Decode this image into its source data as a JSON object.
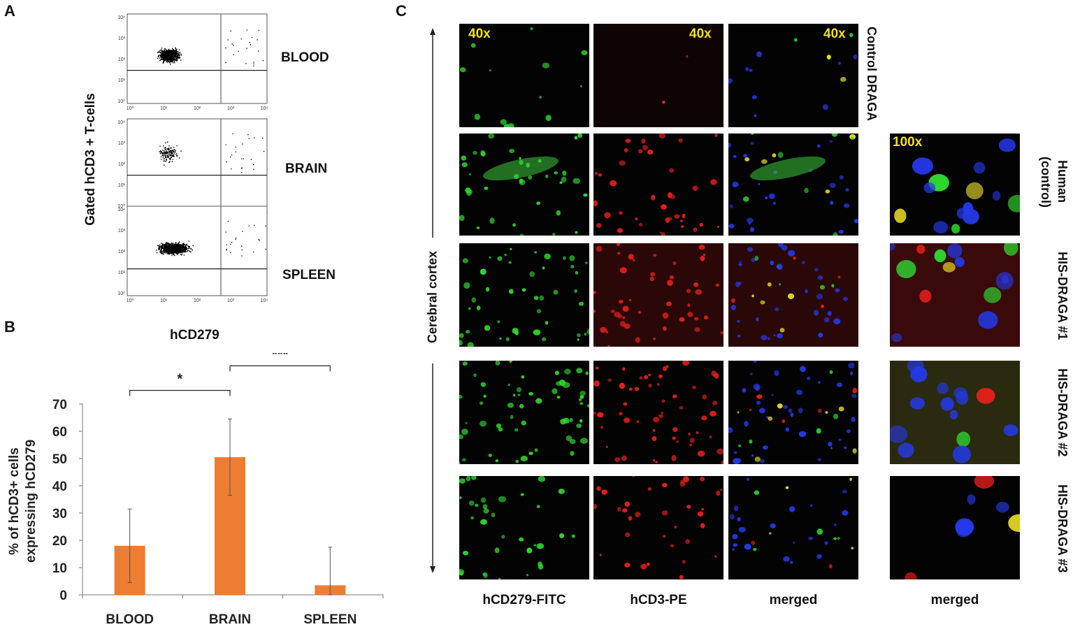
{
  "panels": {
    "a": "A",
    "b": "B",
    "c": "C"
  },
  "panel_a": {
    "ylabel": "Gated hCD3 + T-cells",
    "xlabel": "hCD279",
    "plots": [
      {
        "label": "BLOOD"
      },
      {
        "label": "BRAIN"
      },
      {
        "label": "SPLEEN"
      }
    ],
    "y_ticks": [
      "10⁴",
      "10³",
      "10²",
      "10¹",
      "10⁰"
    ],
    "x_ticks": [
      "10⁰",
      "10¹",
      "10²",
      "10³",
      "10⁴"
    ]
  },
  "chart_data": {
    "type": "bar",
    "categories": [
      "BLOOD",
      "BRAIN",
      "SPLEEN"
    ],
    "values": [
      18,
      50.5,
      3.5
    ],
    "error": [
      13.5,
      14,
      14
    ],
    "ylabel": "% of hCD3+ cells expressing hCD279",
    "ylabel_lines": [
      "% of hCD3+ cells",
      "expressing hCD279"
    ],
    "ylim": [
      0,
      70
    ],
    "yticks": [
      0,
      10,
      20,
      30,
      40,
      50,
      60,
      70
    ],
    "bar_color": "#ed7d31",
    "significance": [
      {
        "from": "BLOOD",
        "to": "BRAIN",
        "label": "*"
      },
      {
        "from": "BRAIN",
        "to": "SPLEEN",
        "label": "***"
      }
    ]
  },
  "panel_c": {
    "axis_label": "Cerebral cortex",
    "magnifications": {
      "col1": "40x",
      "col2": "40x",
      "col3": "40x",
      "col4": "100x"
    },
    "column_labels": [
      "hCD279-FITC",
      "hCD3-PE",
      "merged",
      "merged"
    ],
    "row_labels": [
      "Control DRAGA",
      "Human (control)",
      "HIS-DRAGA #1",
      "HIS-DRAGA #2",
      "HIS-DRAGA #3"
    ],
    "colors": {
      "fitc": "#2fd82f",
      "pe": "#e8201c",
      "dapi": "#2439e8",
      "merge": "#f2e52a",
      "magnification": "#f4e11a"
    }
  }
}
